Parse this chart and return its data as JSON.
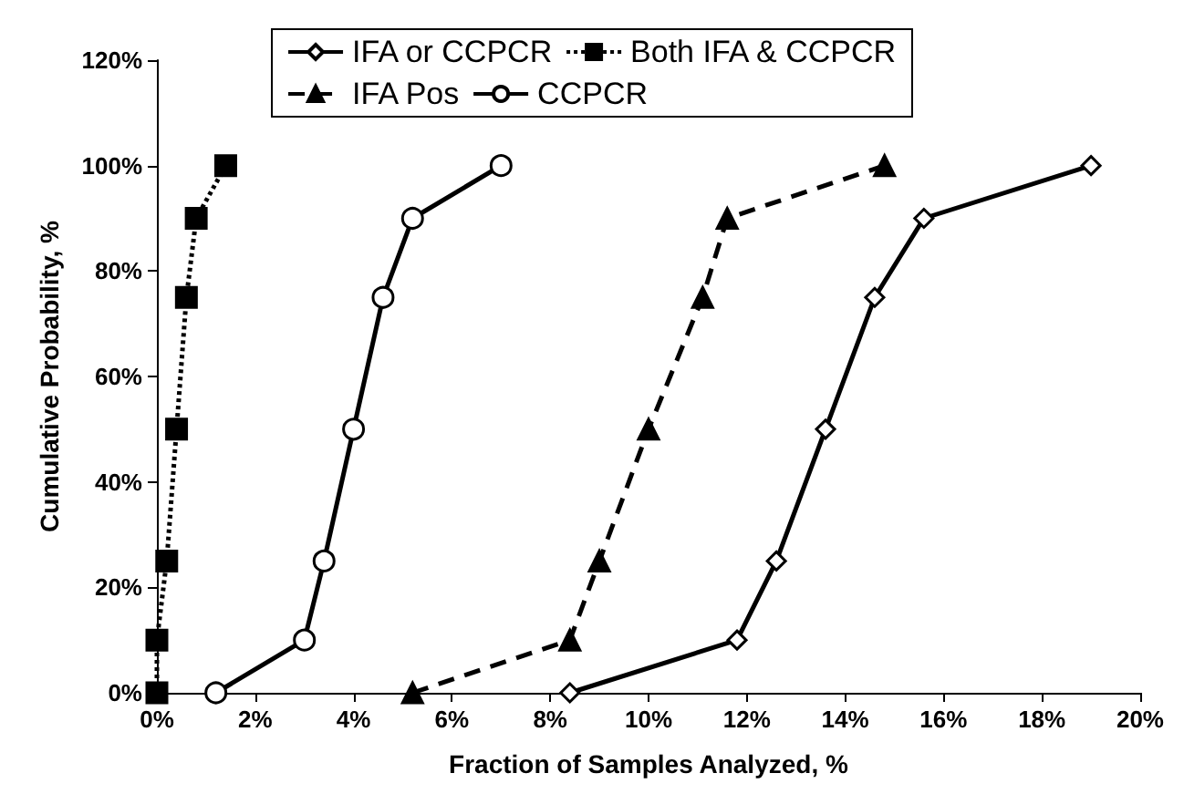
{
  "chart_data": {
    "type": "line",
    "xlabel": "Fraction of Samples Analyzed, %",
    "ylabel": "Cumulative Probability, %",
    "xlim": [
      0,
      20
    ],
    "xticks": [
      {
        "value": 0,
        "label": "0%"
      },
      {
        "value": 2,
        "label": "2%"
      },
      {
        "value": 4,
        "label": "4%"
      },
      {
        "value": 6,
        "label": "6%"
      },
      {
        "value": 8,
        "label": "8%"
      },
      {
        "value": 10,
        "label": "10%"
      },
      {
        "value": 12,
        "label": "12%"
      },
      {
        "value": 14,
        "label": "14%"
      },
      {
        "value": 16,
        "label": "16%"
      },
      {
        "value": 18,
        "label": "18%"
      },
      {
        "value": 20,
        "label": "20%"
      }
    ],
    "ylim": [
      0,
      120
    ],
    "yticks": [
      {
        "value": 0,
        "label": "0%"
      },
      {
        "value": 20,
        "label": "20%"
      },
      {
        "value": 40,
        "label": "40%"
      },
      {
        "value": 60,
        "label": "60%"
      },
      {
        "value": 80,
        "label": "80%"
      },
      {
        "value": 100,
        "label": "100%"
      },
      {
        "value": 120,
        "label": "120%"
      }
    ],
    "grid": false,
    "legend": "top",
    "series": [
      {
        "name": "IFA or CCPCR",
        "color": "#000000",
        "marker": "diamond",
        "line_style": "solid",
        "x": [
          8.4,
          11.8,
          12.6,
          13.6,
          14.6,
          15.6,
          19.0
        ],
        "values": [
          0,
          10,
          25,
          50,
          75,
          90,
          100
        ]
      },
      {
        "name": "Both IFA & CCPCR",
        "color": "#000000",
        "marker": "square",
        "line_style": "dotted",
        "x": [
          0,
          0,
          0.2,
          0.4,
          0.6,
          0.8,
          1.4
        ],
        "values": [
          0,
          10,
          25,
          50,
          75,
          90,
          100
        ]
      },
      {
        "name": "IFA Pos",
        "color": "#000000",
        "marker": "triangle",
        "line_style": "dashed",
        "x": [
          5.2,
          8.4,
          9.0,
          10.0,
          11.1,
          11.6,
          14.8
        ],
        "values": [
          0,
          10,
          25,
          50,
          75,
          90,
          100
        ]
      },
      {
        "name": "CCPCR",
        "color": "#000000",
        "marker": "circle",
        "line_style": "solid",
        "x": [
          1.2,
          3.0,
          3.4,
          4.0,
          4.6,
          5.2,
          7.0
        ],
        "values": [
          0,
          10,
          25,
          50,
          75,
          90,
          100
        ]
      }
    ]
  }
}
